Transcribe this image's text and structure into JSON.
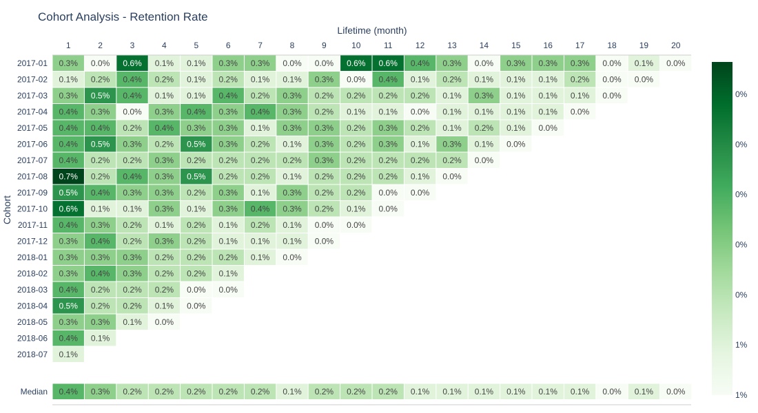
{
  "chart_data": {
    "type": "heatmap",
    "title": "Cohort Analysis - Retention Rate",
    "xlabel": "Lifetime (month)",
    "ylabel": "Cohort",
    "x": [
      "1",
      "2",
      "3",
      "4",
      "5",
      "6",
      "7",
      "8",
      "9",
      "10",
      "11",
      "12",
      "13",
      "14",
      "15",
      "16",
      "17",
      "18",
      "19",
      "20"
    ],
    "cohorts": [
      "2017-01",
      "2017-02",
      "2017-03",
      "2017-04",
      "2017-05",
      "2017-06",
      "2017-07",
      "2017-08",
      "2017-09",
      "2017-10",
      "2017-11",
      "2017-12",
      "2018-01",
      "2018-02",
      "2018-03",
      "2018-04",
      "2018-05",
      "2018-06",
      "2018-07"
    ],
    "values": [
      [
        0.3,
        0.0,
        0.6,
        0.1,
        0.1,
        0.3,
        0.3,
        0.0,
        0.0,
        0.6,
        0.6,
        0.4,
        0.3,
        0.0,
        0.3,
        0.3,
        0.3,
        0.0,
        0.1,
        0.0
      ],
      [
        0.1,
        0.2,
        0.4,
        0.2,
        0.1,
        0.2,
        0.1,
        0.1,
        0.3,
        0.0,
        0.4,
        0.1,
        0.2,
        0.1,
        0.1,
        0.1,
        0.2,
        0.0,
        0.0
      ],
      [
        0.3,
        0.5,
        0.4,
        0.1,
        0.1,
        0.4,
        0.2,
        0.3,
        0.2,
        0.2,
        0.2,
        0.2,
        0.1,
        0.3,
        0.1,
        0.1,
        0.1,
        0.0
      ],
      [
        0.4,
        0.3,
        0.0,
        0.3,
        0.4,
        0.3,
        0.4,
        0.3,
        0.2,
        0.1,
        0.1,
        0.0,
        0.1,
        0.1,
        0.1,
        0.1,
        0.0
      ],
      [
        0.4,
        0.4,
        0.2,
        0.4,
        0.3,
        0.3,
        0.1,
        0.3,
        0.3,
        0.2,
        0.3,
        0.2,
        0.1,
        0.2,
        0.1,
        0.0
      ],
      [
        0.4,
        0.5,
        0.3,
        0.2,
        0.5,
        0.3,
        0.2,
        0.1,
        0.3,
        0.2,
        0.3,
        0.1,
        0.3,
        0.1,
        0.0
      ],
      [
        0.4,
        0.2,
        0.2,
        0.3,
        0.2,
        0.2,
        0.2,
        0.2,
        0.3,
        0.2,
        0.2,
        0.2,
        0.2,
        0.0
      ],
      [
        0.7,
        0.2,
        0.4,
        0.3,
        0.5,
        0.2,
        0.2,
        0.1,
        0.2,
        0.2,
        0.2,
        0.1,
        0.0
      ],
      [
        0.5,
        0.4,
        0.3,
        0.3,
        0.2,
        0.3,
        0.1,
        0.3,
        0.2,
        0.2,
        0.0,
        0.0
      ],
      [
        0.6,
        0.1,
        0.1,
        0.3,
        0.1,
        0.3,
        0.4,
        0.3,
        0.2,
        0.1,
        0.0
      ],
      [
        0.4,
        0.3,
        0.2,
        0.1,
        0.2,
        0.1,
        0.2,
        0.1,
        0.0,
        0.0
      ],
      [
        0.3,
        0.4,
        0.2,
        0.3,
        0.2,
        0.1,
        0.1,
        0.1,
        0.0
      ],
      [
        0.3,
        0.3,
        0.3,
        0.2,
        0.2,
        0.2,
        0.1,
        0.0
      ],
      [
        0.3,
        0.4,
        0.3,
        0.2,
        0.2,
        0.1
      ],
      [
        0.4,
        0.2,
        0.2,
        0.2,
        0.0,
        0.0
      ],
      [
        0.5,
        0.2,
        0.2,
        0.1,
        0.0
      ],
      [
        0.3,
        0.3,
        0.1,
        0.0
      ],
      [
        0.4,
        0.1
      ],
      [
        0.1
      ]
    ],
    "median_label": "Median",
    "median": [
      0.4,
      0.3,
      0.2,
      0.2,
      0.2,
      0.2,
      0.2,
      0.1,
      0.2,
      0.2,
      0.2,
      0.1,
      0.1,
      0.1,
      0.1,
      0.1,
      0.1,
      0.0,
      0.1,
      0.0
    ],
    "value_suffix": "%",
    "colorscale": [
      "#f7fcf5",
      "#e5f5e0",
      "#c7e9c0",
      "#a1d99b",
      "#74c476",
      "#41ab5d",
      "#238b45",
      "#006d2c",
      "#00441b"
    ],
    "zmin": 0.0,
    "zmax": 0.7,
    "colorbar_ticks": [
      "1%",
      "1%",
      "0%",
      "0%",
      "0%",
      "0%",
      "0%"
    ],
    "grid": false
  }
}
